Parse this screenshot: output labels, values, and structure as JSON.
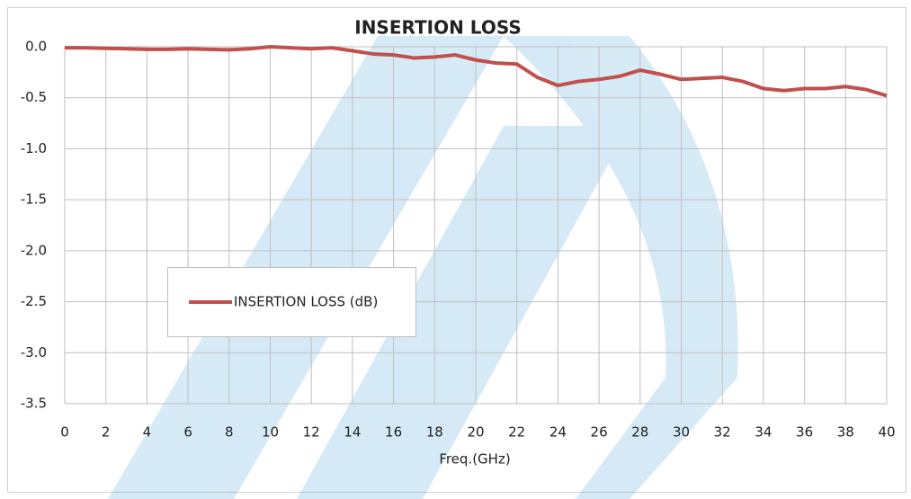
{
  "chart_data": {
    "type": "line",
    "title": "INSERTION LOSS",
    "x_label": "Freq.(GHz)",
    "x": [
      0,
      1,
      2,
      3,
      4,
      5,
      6,
      7,
      8,
      9,
      10,
      11,
      12,
      13,
      14,
      15,
      16,
      17,
      18,
      19,
      20,
      21,
      22,
      23,
      24,
      25,
      26,
      27,
      28,
      29,
      30,
      31,
      32,
      33,
      34,
      35,
      36,
      37,
      38,
      39,
      40
    ],
    "series": [
      {
        "name": "INSERTION LOSS (dB)",
        "color": "#c0504d",
        "values": [
          -0.01,
          -0.01,
          -0.015,
          -0.02,
          -0.025,
          -0.025,
          -0.02,
          -0.025,
          -0.03,
          -0.02,
          0.0,
          -0.01,
          -0.02,
          -0.01,
          -0.04,
          -0.07,
          -0.08,
          -0.11,
          -0.1,
          -0.08,
          -0.13,
          -0.16,
          -0.17,
          -0.3,
          -0.38,
          -0.34,
          -0.32,
          -0.29,
          -0.23,
          -0.27,
          -0.32,
          -0.31,
          -0.3,
          -0.34,
          -0.41,
          -0.43,
          -0.41,
          -0.41,
          -0.39,
          -0.42,
          -0.48
        ]
      }
    ],
    "xlim": [
      0,
      40
    ],
    "xticks": [
      0,
      2,
      4,
      6,
      8,
      10,
      12,
      14,
      16,
      18,
      20,
      22,
      24,
      26,
      28,
      30,
      32,
      34,
      36,
      38,
      40
    ],
    "ylim": [
      -3.5,
      0
    ],
    "yticks": [
      {
        "value": 0,
        "label": "0.0"
      },
      -0.5,
      {
        "value": -1,
        "label": "-1.0"
      },
      -1.5,
      {
        "value": -2,
        "label": "-2.0"
      },
      -2.5,
      {
        "value": -3,
        "label": "-3.0"
      },
      -3.5
    ],
    "grid": true,
    "legend": "center-left"
  }
}
